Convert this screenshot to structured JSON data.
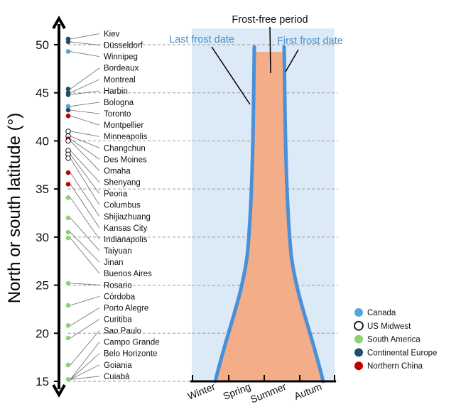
{
  "chart_data": {
    "type": "scatter",
    "ylabel": "North or south latitude (°)",
    "ylim": [
      15,
      52
    ],
    "yticks": [
      15,
      20,
      25,
      30,
      35,
      40,
      45,
      50
    ],
    "season_labels": [
      "Winter",
      "Spring",
      "Summer",
      "Autum"
    ],
    "annotations": {
      "frost_free": "Frost-free period",
      "last_frost": "Last frost date",
      "first_frost": "First frost date"
    },
    "legend": [
      {
        "key": "canada",
        "label": "Canada",
        "color": "#4fa8dc"
      },
      {
        "key": "us",
        "label": "US Midwest",
        "color": "#ffffff"
      },
      {
        "key": "sa",
        "label": "South America",
        "color": "#8cd26e"
      },
      {
        "key": "eu",
        "label": "Continental Europe",
        "color": "#1f4e66"
      },
      {
        "key": "cn",
        "label": "Northern China",
        "color": "#c00000"
      }
    ],
    "cities": [
      {
        "name": "Kiev",
        "lat": 50.5,
        "group": "eu"
      },
      {
        "name": "Düsseldorf",
        "lat": 51.2,
        "group": "eu"
      },
      {
        "name": "Winnipeg",
        "lat": 49.9,
        "group": "canada"
      },
      {
        "name": "Bordeaux",
        "lat": 44.8,
        "group": "eu"
      },
      {
        "name": "Montreal",
        "lat": 45.5,
        "group": "canada"
      },
      {
        "name": "Harbin",
        "lat": 45.8,
        "group": "cn"
      },
      {
        "name": "Bologna",
        "lat": 44.5,
        "group": "eu"
      },
      {
        "name": "Toronto",
        "lat": 43.7,
        "group": "canada"
      },
      {
        "name": "Montpellier",
        "lat": 43.6,
        "group": "eu"
      },
      {
        "name": "Minneapolis",
        "lat": 45.0,
        "group": "us"
      },
      {
        "name": "Changchun",
        "lat": 43.9,
        "group": "cn"
      },
      {
        "name": "Des Moines",
        "lat": 41.6,
        "group": "us"
      },
      {
        "name": "Omaha",
        "lat": 41.3,
        "group": "us"
      },
      {
        "name": "Shenyang",
        "lat": 41.8,
        "group": "cn"
      },
      {
        "name": "Peoria",
        "lat": 40.7,
        "group": "us"
      },
      {
        "name": "Columbus",
        "lat": 40.0,
        "group": "us"
      },
      {
        "name": "Shijiazhuang",
        "lat": 38.0,
        "group": "cn"
      },
      {
        "name": "Kansas City",
        "lat": 39.1,
        "group": "us"
      },
      {
        "name": "Indianapolis",
        "lat": 39.8,
        "group": "us"
      },
      {
        "name": "Taiyuan",
        "lat": 37.9,
        "group": "cn"
      },
      {
        "name": "Jinan",
        "lat": 36.7,
        "group": "cn"
      },
      {
        "name": "Buenos Aires",
        "lat": 34.6,
        "group": "sa"
      },
      {
        "name": "Rosario",
        "lat": 32.9,
        "group": "sa"
      },
      {
        "name": "Córdoba",
        "lat": 31.4,
        "group": "sa"
      },
      {
        "name": "Porto Alegre",
        "lat": 30.0,
        "group": "sa"
      },
      {
        "name": "Curitiba",
        "lat": 25.4,
        "group": "sa"
      },
      {
        "name": "Sao Paulo",
        "lat": 23.5,
        "group": "sa"
      },
      {
        "name": "Campo Grande",
        "lat": 20.5,
        "group": "sa"
      },
      {
        "name": "Belo Horizonte",
        "lat": 19.9,
        "group": "sa"
      },
      {
        "name": "Goiania",
        "lat": 16.7,
        "group": "sa"
      },
      {
        "name": "Cuiabá",
        "lat": 15.6,
        "group": "sa"
      }
    ],
    "dots": [
      {
        "lat": 50.6,
        "group": "eu"
      },
      {
        "lat": 50.3,
        "group": "eu"
      },
      {
        "lat": 49.3,
        "group": "canada"
      },
      {
        "lat": 45.4,
        "group": "eu"
      },
      {
        "lat": 45.0,
        "group": "eu"
      },
      {
        "lat": 44.8,
        "group": "eu"
      },
      {
        "lat": 43.6,
        "group": "canada"
      },
      {
        "lat": 43.2,
        "group": "eu"
      },
      {
        "lat": 42.6,
        "group": "cn"
      },
      {
        "lat": 41.0,
        "group": "us"
      },
      {
        "lat": 40.5,
        "group": "us"
      },
      {
        "lat": 40.2,
        "group": "cn"
      },
      {
        "lat": 40.0,
        "group": "us"
      },
      {
        "lat": 39.0,
        "group": "us"
      },
      {
        "lat": 38.6,
        "group": "us"
      },
      {
        "lat": 38.2,
        "group": "us"
      },
      {
        "lat": 36.7,
        "group": "cn"
      },
      {
        "lat": 35.5,
        "group": "cn"
      },
      {
        "lat": 34.1,
        "group": "sa"
      },
      {
        "lat": 32.0,
        "group": "sa"
      },
      {
        "lat": 30.5,
        "group": "sa"
      },
      {
        "lat": 29.9,
        "group": "sa"
      },
      {
        "lat": 25.2,
        "group": "sa"
      },
      {
        "lat": 22.9,
        "group": "sa"
      },
      {
        "lat": 20.8,
        "group": "sa"
      },
      {
        "lat": 19.5,
        "group": "sa"
      },
      {
        "lat": 16.7,
        "group": "sa"
      },
      {
        "lat": 15.2,
        "group": "sa"
      }
    ]
  }
}
